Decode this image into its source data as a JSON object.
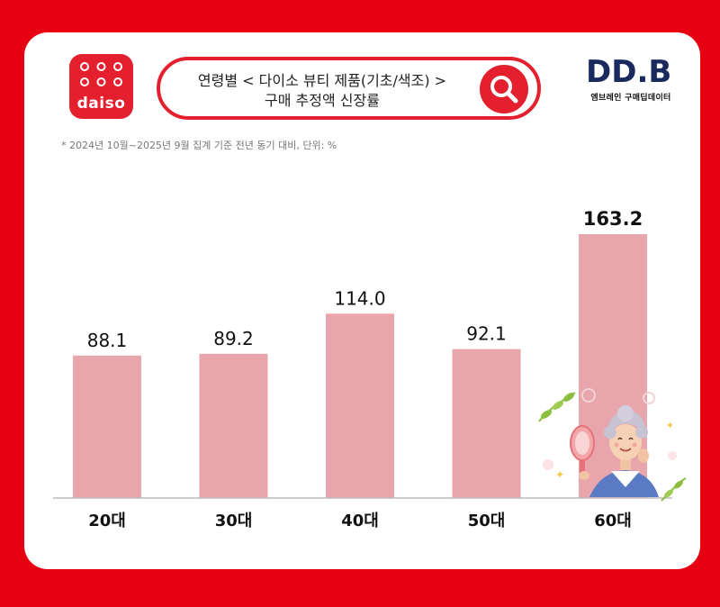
{
  "brand": {
    "daiso_logo_text": "daiso",
    "ddb_logo_text": "DD.B",
    "ddb_subtitle": "엠브레인 구매딥데이터"
  },
  "search": {
    "line1": "연령별 < 다이소 뷰티 제품(기초/색조) >",
    "line2": "구매 추정액 신장률",
    "icon": "search-icon"
  },
  "note": "* 2024년 10월~2025년 9월 집계 기준 전년 동기 대비, 단위: %",
  "colors": {
    "background": "#e60012",
    "bar": "#e8a5ac",
    "accent": "#e5202e"
  },
  "chart_data": {
    "type": "bar",
    "categories": [
      "20대",
      "30대",
      "40대",
      "50대",
      "60대"
    ],
    "values": [
      88.1,
      89.2,
      114.0,
      92.1,
      163.2
    ],
    "value_labels": [
      "88.1",
      "89.2",
      "114.0",
      "92.1",
      "163.2"
    ],
    "highlight_index": 4,
    "title": "",
    "xlabel": "",
    "ylabel": "",
    "ylim": [
      0,
      163.2
    ],
    "grid": false,
    "legend": "none"
  },
  "decoration": {
    "icon": "elderly-woman-with-mirror-illustration"
  }
}
